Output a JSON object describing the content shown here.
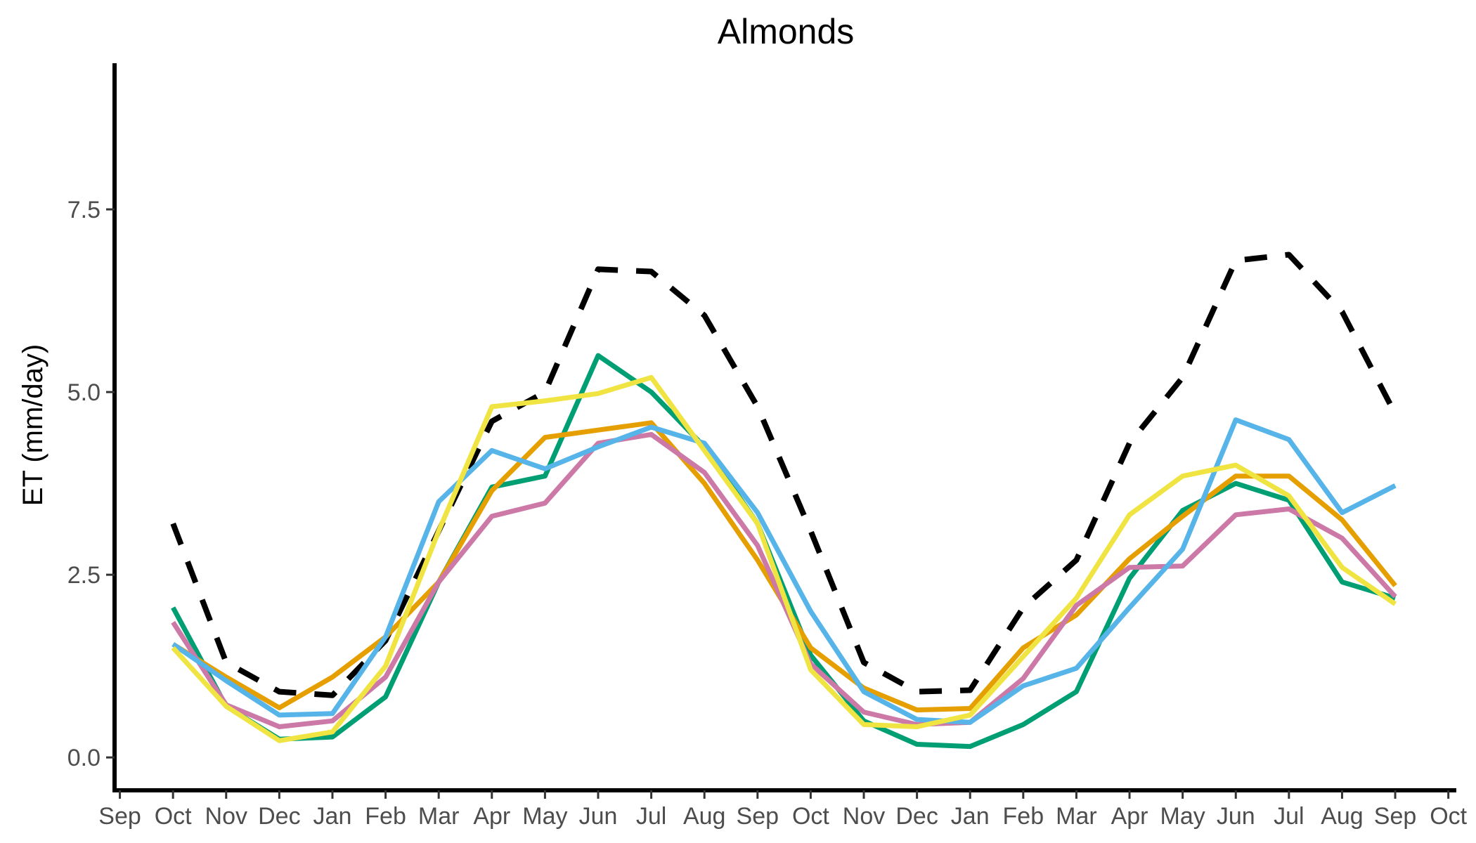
{
  "chart_data": {
    "type": "line",
    "title": "Almonds",
    "xlabel": "",
    "ylabel": "ET (mm/day)",
    "ylim": [
      -0.45,
      9.5
    ],
    "yticks": [
      "0.0",
      "2.5",
      "5.0",
      "7.5"
    ],
    "ytick_values": [
      0,
      2.5,
      5,
      7.5
    ],
    "x_tick_labels": [
      "Sep",
      "Oct",
      "Nov",
      "Dec",
      "Jan",
      "Feb",
      "Mar",
      "Apr",
      "May",
      "Jun",
      "Jul",
      "Aug",
      "Sep",
      "Oct",
      "Nov",
      "Dec",
      "Jan",
      "Feb",
      "Mar",
      "Apr",
      "May",
      "Jun",
      "Jul",
      "Aug",
      "Sep",
      "Oct"
    ],
    "x_range": [
      -0.1,
      25.15
    ],
    "grid": false,
    "legend": "none",
    "series": [
      {
        "color": "#000000",
        "dashed": true,
        "x": [
          1,
          2,
          3,
          4,
          5,
          7,
          8,
          9,
          10,
          11,
          12,
          13,
          14,
          15,
          16,
          17,
          18,
          19,
          20,
          21,
          22,
          23,
          24
        ],
        "values": [
          3.2,
          1.3,
          0.9,
          0.85,
          1.6,
          4.6,
          5.0,
          6.68,
          6.65,
          6.05,
          4.8,
          3.1,
          1.3,
          0.9,
          0.92,
          2.05,
          2.7,
          4.3,
          5.2,
          6.8,
          6.88,
          6.1,
          4.7
        ]
      },
      {
        "color": "#009E73",
        "dashed": false,
        "x": [
          1,
          2,
          3,
          4,
          5,
          6,
          7,
          8,
          9,
          10,
          11,
          12,
          13,
          14,
          15,
          16,
          17,
          18,
          19,
          20,
          21,
          22,
          23,
          24
        ],
        "values": [
          2.05,
          0.7,
          0.25,
          0.28,
          0.83,
          2.4,
          3.7,
          3.85,
          5.5,
          5.0,
          4.25,
          3.2,
          1.4,
          0.5,
          0.18,
          0.15,
          0.45,
          0.9,
          2.45,
          3.38,
          3.75,
          3.52,
          2.4,
          2.18
        ]
      },
      {
        "color": "#E69F00",
        "dashed": false,
        "x": [
          1,
          2,
          3,
          4,
          5,
          6,
          7,
          8,
          9,
          10,
          11,
          12,
          13,
          14,
          15,
          16,
          17,
          18,
          19,
          20,
          21,
          22,
          23,
          24
        ],
        "values": [
          1.55,
          1.1,
          0.68,
          1.1,
          1.65,
          2.4,
          3.65,
          4.38,
          4.48,
          4.58,
          3.75,
          2.7,
          1.5,
          0.95,
          0.65,
          0.67,
          1.5,
          1.95,
          2.72,
          3.3,
          3.85,
          3.85,
          3.25,
          2.35
        ]
      },
      {
        "color": "#CC79A7",
        "dashed": false,
        "x": [
          1,
          2,
          3,
          4,
          5,
          6,
          7,
          8,
          9,
          10,
          11,
          12,
          13,
          14,
          15,
          16,
          17,
          18,
          19,
          20,
          21,
          22,
          23,
          24
        ],
        "values": [
          1.85,
          0.72,
          0.42,
          0.5,
          1.1,
          2.4,
          3.3,
          3.48,
          4.3,
          4.42,
          3.9,
          2.9,
          1.28,
          0.62,
          0.45,
          0.48,
          1.08,
          2.08,
          2.6,
          2.62,
          3.32,
          3.4,
          3.0,
          2.2
        ]
      },
      {
        "color": "#56B4E9",
        "dashed": false,
        "x": [
          1,
          2,
          3,
          4,
          5,
          6,
          7,
          8,
          9,
          10,
          11,
          12,
          13,
          14,
          15,
          16,
          17,
          18,
          19,
          20,
          21,
          22,
          23,
          24
        ],
        "values": [
          1.55,
          1.05,
          0.58,
          0.6,
          1.65,
          3.5,
          4.2,
          3.95,
          4.25,
          4.52,
          4.3,
          3.35,
          2.0,
          0.9,
          0.52,
          0.48,
          0.98,
          1.22,
          2.05,
          2.85,
          4.62,
          4.35,
          3.35,
          3.72
        ]
      },
      {
        "color": "#F0E442",
        "dashed": false,
        "x": [
          1,
          2,
          3,
          4,
          5,
          6,
          7,
          8,
          9,
          10,
          11,
          12,
          13,
          14,
          15,
          16,
          17,
          18,
          19,
          20,
          21,
          22,
          23,
          24
        ],
        "values": [
          1.5,
          0.7,
          0.23,
          0.35,
          1.25,
          3.1,
          4.8,
          4.88,
          4.98,
          5.2,
          4.2,
          3.2,
          1.2,
          0.45,
          0.42,
          0.58,
          1.38,
          2.18,
          3.32,
          3.85,
          4.0,
          3.58,
          2.6,
          2.1
        ]
      }
    ]
  }
}
